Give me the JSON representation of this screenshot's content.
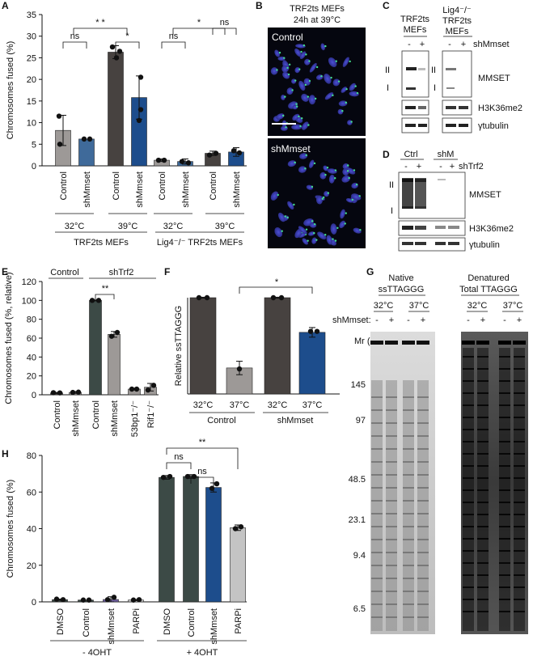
{
  "colors": {
    "dark": "#474240",
    "grey": "#9d9997",
    "blue_light": "#3f6a9a",
    "blue_dark": "#1d4d8c",
    "light_grey": "#c4c4c4",
    "dark_green": "#3c4a46",
    "purple": "#6f5fa0"
  },
  "panels": {
    "A": "A",
    "B": "B",
    "C": "C",
    "D": "D",
    "E": "E",
    "F": "F",
    "G": "G",
    "H": "H"
  },
  "chart_data": [
    {
      "panel": "A",
      "type": "bar",
      "ylabel": "Chromosomes fused (%)",
      "ylim": [
        0,
        35
      ],
      "yticks": [
        "0",
        "5",
        "10",
        "15",
        "20",
        "25",
        "30",
        "35"
      ],
      "categories": [
        "Control",
        "shMmset",
        "Control",
        "shMmset",
        "Control",
        "shMmset",
        "Control",
        "shMmset"
      ],
      "values": [
        8.2,
        6.2,
        26.3,
        15.8,
        1.3,
        1.0,
        2.9,
        3.2
      ],
      "errors": [
        3.5,
        0.2,
        1.5,
        5.0,
        0.3,
        0.6,
        0.5,
        1.0
      ],
      "temps": [
        "32°C",
        "39°C",
        "32°C",
        "39°C"
      ],
      "groups": [
        "TRF2ts MEFs",
        "Lig4⁻/⁻ TRF2ts MEFs"
      ],
      "significance": [
        "ns",
        "* *",
        "*",
        "ns",
        "*",
        "ns"
      ]
    },
    {
      "panel": "E",
      "type": "bar",
      "ylabel": "Chromosomes fused (%, relative)",
      "ylim": [
        0,
        120
      ],
      "yticks": [
        "0",
        "20",
        "40",
        "60",
        "80",
        "100",
        "120"
      ],
      "categories": [
        "Control",
        "shMmset",
        "Control",
        "shMmset",
        "53bp1⁻/⁻",
        "Rif1⁻/⁻"
      ],
      "values": [
        2,
        2.5,
        100,
        64,
        6,
        8
      ],
      "errors": [
        0.5,
        1.0,
        0.5,
        3.0,
        1.0,
        4.0
      ],
      "group_labels": [
        "Control",
        "shTrf2"
      ],
      "significance": [
        "**"
      ]
    },
    {
      "panel": "F",
      "type": "bar",
      "ylabel": "Relative ssTTAGGG",
      "ylim": [
        0,
        100
      ],
      "categories": [
        "32°C",
        "37°C",
        "32°C",
        "37°C"
      ],
      "values": [
        100,
        27,
        100,
        64
      ],
      "errors": [
        0.5,
        7,
        0.5,
        5
      ],
      "groups": [
        "Control",
        "shMmset"
      ],
      "significance": [
        "*"
      ]
    },
    {
      "panel": "H",
      "type": "bar",
      "ylabel": "Chromosomes fused (%)",
      "ylim": [
        0,
        80
      ],
      "yticks": [
        "0",
        "20",
        "40",
        "60",
        "80"
      ],
      "categories": [
        "DMSO",
        "Control",
        "shMmset",
        "PARPi",
        "DMSO",
        "Control",
        "shMmset",
        "PARPi"
      ],
      "values": [
        1.2,
        1.0,
        1.3,
        1.0,
        68,
        68.5,
        62.5,
        40.5
      ],
      "errors": [
        0.3,
        0.2,
        1.5,
        0.3,
        1.0,
        1.0,
        2.5,
        1.5
      ],
      "groups": [
        "- 4OHT",
        "+ 4OHT"
      ],
      "significance": [
        "ns",
        "ns",
        "**"
      ]
    }
  ],
  "panelB": {
    "title_line1": "TRF2ts MEFs",
    "title_line2": "24h at 39°C",
    "control_label": "Control",
    "shmmset_label": "shMmset"
  },
  "panelC": {
    "col1_line1": "TRF2ts",
    "col1_line2": "MEFs",
    "col2_line1": "Lig4⁻/⁻",
    "col2_line2": "TRF2ts",
    "col2_line3": "MEFs",
    "minus": "-",
    "plus": "+",
    "treatment": "shMmset",
    "band_II": "II",
    "band_I": "I",
    "row1": "MMSET",
    "row2": "H3K36me2",
    "row3": "γtubulin"
  },
  "panelD": {
    "ctrl": "Ctrl",
    "shm": "shM",
    "minus": "-",
    "plus": "+",
    "treatment": "shTrf2",
    "band_II": "II",
    "band_I": "I",
    "row1": "MMSET",
    "row2": "H3K36me2",
    "row3": "γtubulin"
  },
  "panelG": {
    "native_line1": "Native",
    "native_line2": "ssTTAGGG",
    "denat_line1": "Denatured",
    "denat_line2": "Total TTAGGG",
    "temps": [
      "32°C",
      "37°C",
      "32°C",
      "37°C"
    ],
    "shmmset_label": "shMmset:",
    "signs": [
      "-",
      "+",
      "-",
      "+",
      "-",
      "+",
      "-",
      "+"
    ],
    "mr_label": "Mr (K)",
    "markers": [
      "145",
      "97",
      "48.5",
      "23.1",
      "9.4",
      "6.5"
    ]
  }
}
